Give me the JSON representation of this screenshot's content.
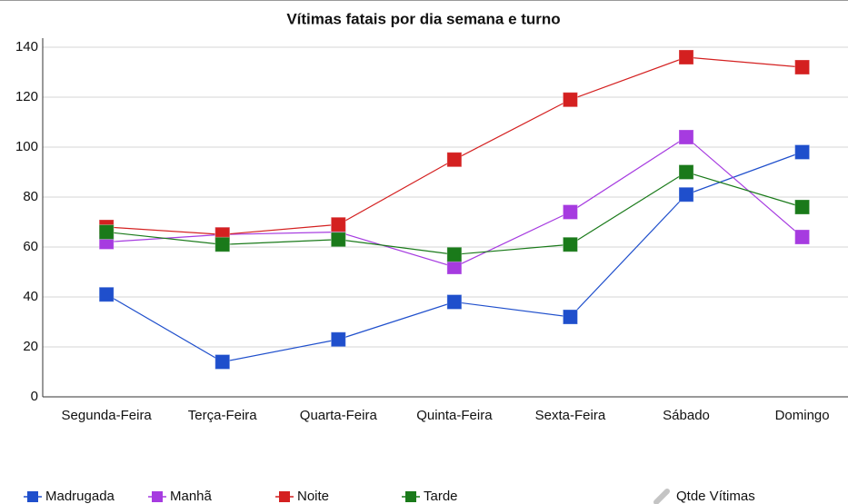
{
  "chart_data": {
    "type": "line",
    "title": "Vítimas fatais por dia semana e turno",
    "categories": [
      "Segunda-Feira",
      "Terça-Feira",
      "Quarta-Feira",
      "Quinta-Feira",
      "Sexta-Feira",
      "Sábado",
      "Domingo"
    ],
    "series": [
      {
        "name": "Madrugada",
        "color": "#1f4fcc",
        "values": [
          41,
          14,
          23,
          38,
          32,
          81,
          98
        ]
      },
      {
        "name": "Manhã",
        "color": "#a63be0",
        "values": [
          62,
          65,
          66,
          52,
          74,
          104,
          64
        ]
      },
      {
        "name": "Noite",
        "color": "#d42020",
        "values": [
          68,
          65,
          69,
          95,
          119,
          136,
          132
        ]
      },
      {
        "name": "Tarde",
        "color": "#1a7a1a",
        "values": [
          66,
          61,
          63,
          57,
          61,
          90,
          76
        ]
      }
    ],
    "secondary_legend": {
      "name": "Qtde Vítimas",
      "color": "#c4c4c4"
    },
    "ylim": [
      0,
      140
    ],
    "yticks": [
      0,
      20,
      40,
      60,
      80,
      100,
      120,
      140
    ],
    "grid": true
  }
}
